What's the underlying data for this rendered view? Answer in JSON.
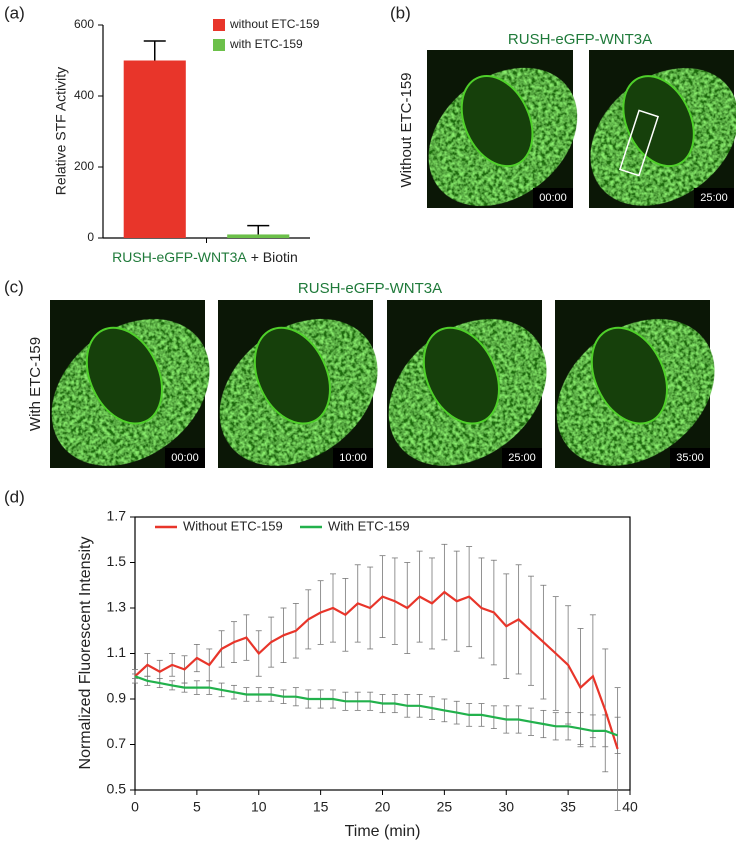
{
  "panels": {
    "a": "(a)",
    "b": "(b)",
    "c": "(c)",
    "d": "(d)"
  },
  "micrographs": {
    "b": {
      "title": "RUSH-eGFP-WNT3A",
      "condition": "Without ETC-159",
      "timestamps": [
        "00:00",
        "25:00"
      ]
    },
    "c": {
      "title": "RUSH-eGFP-WNT3A",
      "condition": "With ETC-159",
      "timestamps": [
        "00:00",
        "10:00",
        "25:00",
        "35:00"
      ]
    }
  },
  "chart_data": [
    {
      "type": "bar",
      "y_label": "Relative STF Activity",
      "x_label": [
        "RUSH-eGFP-WNT3A",
        "+ Biotin"
      ],
      "categories": [
        null,
        null
      ],
      "series": [
        {
          "name": "without ETC-159",
          "color": "#e8352a",
          "values": [
            500,
            null
          ],
          "errors": [
            55,
            null
          ]
        },
        {
          "name": "with ETC-159",
          "color": "#6cc04a",
          "values": [
            null,
            10
          ],
          "errors": [
            null,
            25
          ]
        }
      ],
      "ylim": [
        0,
        600
      ],
      "yticks": [
        0,
        200,
        400,
        600
      ],
      "legend": "top-right"
    },
    {
      "type": "line",
      "x_label": "Time (min)",
      "y_label": "Normalized Fluorescent Intensity",
      "x": [
        0,
        1,
        2,
        3,
        4,
        5,
        6,
        7,
        8,
        9,
        10,
        11,
        12,
        13,
        14,
        15,
        16,
        17,
        18,
        19,
        20,
        21,
        22,
        23,
        24,
        25,
        26,
        27,
        28,
        29,
        30,
        31,
        32,
        33,
        34,
        35,
        36,
        37,
        38,
        39
      ],
      "series": [
        {
          "name": "Without ETC-159",
          "color": "#e8352a",
          "values": [
            1.0,
            1.05,
            1.02,
            1.05,
            1.03,
            1.08,
            1.05,
            1.12,
            1.15,
            1.17,
            1.1,
            1.15,
            1.18,
            1.2,
            1.25,
            1.28,
            1.3,
            1.27,
            1.32,
            1.3,
            1.35,
            1.33,
            1.3,
            1.35,
            1.32,
            1.37,
            1.33,
            1.35,
            1.3,
            1.28,
            1.22,
            1.25,
            1.2,
            1.15,
            1.1,
            1.05,
            0.95,
            1.0,
            0.85,
            0.68
          ],
          "errors": [
            0.03,
            0.05,
            0.05,
            0.05,
            0.06,
            0.06,
            0.07,
            0.08,
            0.09,
            0.1,
            0.1,
            0.11,
            0.12,
            0.12,
            0.13,
            0.14,
            0.15,
            0.16,
            0.17,
            0.18,
            0.18,
            0.19,
            0.2,
            0.2,
            0.2,
            0.21,
            0.22,
            0.22,
            0.22,
            0.23,
            0.23,
            0.24,
            0.24,
            0.25,
            0.25,
            0.26,
            0.26,
            0.27,
            0.27,
            0.27
          ]
        },
        {
          "name": "With ETC-159",
          "color": "#22b14c",
          "values": [
            1.0,
            0.98,
            0.97,
            0.96,
            0.95,
            0.95,
            0.95,
            0.94,
            0.93,
            0.92,
            0.92,
            0.92,
            0.91,
            0.91,
            0.9,
            0.9,
            0.9,
            0.89,
            0.89,
            0.89,
            0.88,
            0.88,
            0.87,
            0.87,
            0.86,
            0.85,
            0.84,
            0.83,
            0.83,
            0.82,
            0.81,
            0.81,
            0.8,
            0.79,
            0.78,
            0.78,
            0.77,
            0.76,
            0.76,
            0.74
          ],
          "errors": [
            0.01,
            0.02,
            0.02,
            0.02,
            0.02,
            0.03,
            0.03,
            0.03,
            0.03,
            0.03,
            0.03,
            0.03,
            0.03,
            0.04,
            0.04,
            0.04,
            0.04,
            0.04,
            0.04,
            0.04,
            0.04,
            0.04,
            0.05,
            0.05,
            0.05,
            0.05,
            0.05,
            0.05,
            0.05,
            0.05,
            0.06,
            0.06,
            0.06,
            0.06,
            0.06,
            0.06,
            0.07,
            0.07,
            0.07,
            0.08
          ]
        }
      ],
      "xlim": [
        0,
        40
      ],
      "xticks": [
        0,
        5,
        10,
        15,
        20,
        25,
        30,
        35,
        40
      ],
      "ylim": [
        0.5,
        1.7
      ],
      "yticks": [
        0.5,
        0.7,
        0.9,
        1.1,
        1.3,
        1.5,
        1.7
      ],
      "legend": "top-left"
    }
  ]
}
